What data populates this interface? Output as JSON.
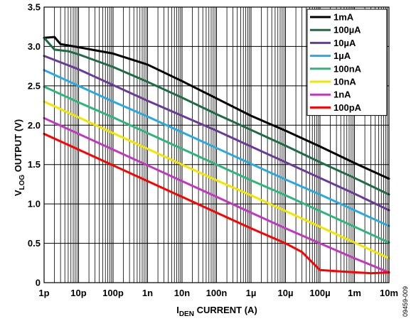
{
  "chart_data": {
    "type": "line",
    "title": "",
    "xlabel": {
      "main": "I",
      "sub": "DEN",
      "rest": " CURRENT (A)"
    },
    "ylabel": {
      "main": "V",
      "sub": "LOG",
      "rest": " OUTPUT (V)"
    },
    "x_scale": "log",
    "xlim": [
      1e-12,
      0.01
    ],
    "ylim": [
      0,
      3.5
    ],
    "x_ticks": [
      {
        "value": 1e-12,
        "label": "1p"
      },
      {
        "value": 1e-11,
        "label": "10p"
      },
      {
        "value": 1e-10,
        "label": "100p"
      },
      {
        "value": 1e-09,
        "label": "1n"
      },
      {
        "value": 1e-08,
        "label": "10n"
      },
      {
        "value": 1e-07,
        "label": "100n"
      },
      {
        "value": 1e-06,
        "label": "1µ"
      },
      {
        "value": 1e-05,
        "label": "10µ"
      },
      {
        "value": 0.0001,
        "label": "100µ"
      },
      {
        "value": 0.001,
        "label": "1m"
      },
      {
        "value": 0.01,
        "label": "10m"
      }
    ],
    "y_ticks": [
      {
        "value": 0,
        "label": "0"
      },
      {
        "value": 0.5,
        "label": "0.5"
      },
      {
        "value": 1.0,
        "label": "1.0"
      },
      {
        "value": 1.5,
        "label": "1.5"
      },
      {
        "value": 2.0,
        "label": "2.0"
      },
      {
        "value": 2.5,
        "label": "2.5"
      },
      {
        "value": 3.0,
        "label": "3.0"
      },
      {
        "value": 3.5,
        "label": "3.5"
      }
    ],
    "grid": true,
    "legend_position": "top-right",
    "series": [
      {
        "name": "1mA",
        "color": "#000000",
        "points": [
          [
            1e-12,
            3.11
          ],
          [
            2e-12,
            3.12
          ],
          [
            3e-12,
            3.03
          ],
          [
            1e-11,
            2.99
          ],
          [
            1e-10,
            2.91
          ],
          [
            1e-09,
            2.77
          ],
          [
            1e-08,
            2.56
          ],
          [
            1e-07,
            2.34
          ],
          [
            1e-06,
            2.12
          ],
          [
            1e-05,
            1.93
          ],
          [
            0.0001,
            1.73
          ],
          [
            0.001,
            1.52
          ],
          [
            0.01,
            1.32
          ]
        ]
      },
      {
        "name": "100µA",
        "color": "#1f6b45",
        "points": [
          [
            1e-12,
            3.11
          ],
          [
            2e-12,
            2.96
          ],
          [
            5e-12,
            2.94
          ],
          [
            1e-11,
            2.9
          ],
          [
            1e-10,
            2.74
          ],
          [
            1e-09,
            2.55
          ],
          [
            1e-08,
            2.35
          ],
          [
            1e-07,
            2.14
          ],
          [
            1e-06,
            1.94
          ],
          [
            1e-05,
            1.74
          ],
          [
            0.0001,
            1.53
          ],
          [
            0.001,
            1.33
          ],
          [
            0.01,
            1.12
          ]
        ]
      },
      {
        "name": "10µA",
        "color": "#6a3a9a",
        "points": [
          [
            1e-12,
            2.88
          ],
          [
            1e-11,
            2.71
          ],
          [
            1e-10,
            2.51
          ],
          [
            1e-09,
            2.31
          ],
          [
            1e-08,
            2.12
          ],
          [
            1e-07,
            1.93
          ],
          [
            1e-06,
            1.73
          ],
          [
            1e-05,
            1.53
          ],
          [
            0.0001,
            1.33
          ],
          [
            0.001,
            1.13
          ],
          [
            0.01,
            0.92
          ]
        ]
      },
      {
        "name": "1µA",
        "color": "#29a9e1",
        "points": [
          [
            1e-12,
            2.7
          ],
          [
            1e-11,
            2.5
          ],
          [
            1e-10,
            2.3
          ],
          [
            1e-09,
            2.11
          ],
          [
            1e-08,
            1.91
          ],
          [
            1e-07,
            1.71
          ],
          [
            1e-06,
            1.51
          ],
          [
            1e-05,
            1.31
          ],
          [
            0.0001,
            1.12
          ],
          [
            0.001,
            0.92
          ],
          [
            0.01,
            0.72
          ]
        ]
      },
      {
        "name": "100nA",
        "color": "#2eb67a",
        "points": [
          [
            1e-12,
            2.49
          ],
          [
            1e-11,
            2.29
          ],
          [
            1e-10,
            2.1
          ],
          [
            1e-09,
            1.9
          ],
          [
            1e-08,
            1.7
          ],
          [
            1e-07,
            1.5
          ],
          [
            1e-06,
            1.3
          ],
          [
            1e-05,
            1.11
          ],
          [
            0.0001,
            0.91
          ],
          [
            0.001,
            0.71
          ],
          [
            0.01,
            0.51
          ]
        ]
      },
      {
        "name": "10nA",
        "color": "#f2e600",
        "points": [
          [
            1e-12,
            2.3
          ],
          [
            1e-11,
            2.1
          ],
          [
            1e-10,
            1.9
          ],
          [
            1e-09,
            1.7
          ],
          [
            1e-08,
            1.5
          ],
          [
            1e-07,
            1.3
          ],
          [
            1e-06,
            1.11
          ],
          [
            1e-05,
            0.91
          ],
          [
            0.0001,
            0.71
          ],
          [
            0.001,
            0.51
          ],
          [
            0.01,
            0.31
          ]
        ]
      },
      {
        "name": "1nA",
        "color": "#c037c0",
        "points": [
          [
            1e-12,
            2.09
          ],
          [
            1e-11,
            1.89
          ],
          [
            1e-10,
            1.69
          ],
          [
            1e-09,
            1.49
          ],
          [
            1e-08,
            1.29
          ],
          [
            1e-07,
            1.09
          ],
          [
            1e-06,
            0.89
          ],
          [
            1e-05,
            0.69
          ],
          [
            0.0001,
            0.5
          ],
          [
            0.001,
            0.31
          ],
          [
            0.01,
            0.13
          ]
        ]
      },
      {
        "name": "100pA",
        "color": "#ff0000",
        "points": [
          [
            1e-12,
            1.89
          ],
          [
            1e-11,
            1.69
          ],
          [
            1e-10,
            1.49
          ],
          [
            1e-09,
            1.29
          ],
          [
            1e-08,
            1.09
          ],
          [
            1e-07,
            0.89
          ],
          [
            1e-06,
            0.69
          ],
          [
            1e-05,
            0.5
          ],
          [
            3e-05,
            0.39
          ],
          [
            0.0001,
            0.16
          ],
          [
            0.0005,
            0.14
          ],
          [
            0.003,
            0.12
          ],
          [
            0.01,
            0.13
          ]
        ]
      }
    ]
  },
  "figure_id": "09459-009"
}
